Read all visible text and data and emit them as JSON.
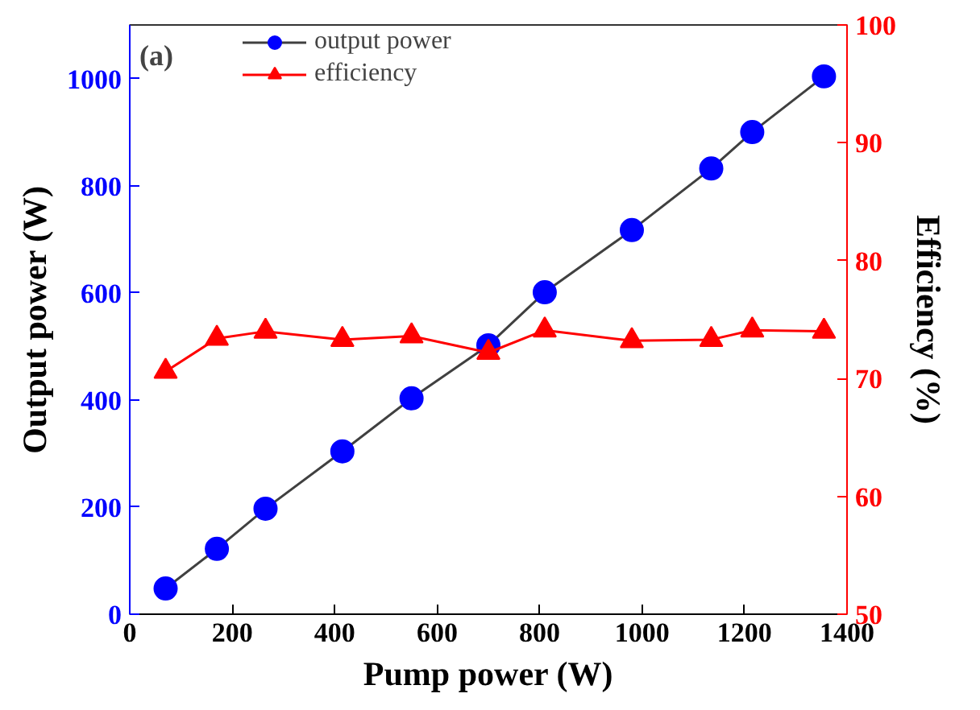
{
  "chart_data": {
    "type": "line",
    "xlabel": "Pump power (W)",
    "ylabel": "Output power (W)",
    "y2label": "Efficiency (%)",
    "annotations": [
      "(a)"
    ],
    "x": [
      70,
      170,
      265,
      415,
      550,
      700,
      810,
      980,
      1135,
      1215,
      1355
    ],
    "xlim": [
      0,
      1400
    ],
    "xticks": [
      0,
      200,
      400,
      600,
      800,
      1000,
      1200,
      1400
    ],
    "ylim": [
      0,
      1100
    ],
    "yticks": [
      0,
      200,
      400,
      600,
      800,
      1000
    ],
    "y2lim": [
      50,
      100
    ],
    "y2ticks": [
      50,
      60,
      70,
      80,
      90,
      100
    ],
    "series": [
      {
        "name": "output power",
        "color": "#0000ff",
        "marker": "circle",
        "values": [
          48,
          122,
          197,
          304,
          403,
          502,
          601,
          717,
          832,
          900,
          1004
        ]
      },
      {
        "name": "efficiency",
        "color": "#ff0000",
        "marker": "triangle",
        "axis": "y2",
        "values": [
          70.6,
          73.4,
          74.0,
          73.3,
          73.6,
          72.2,
          74.1,
          73.2,
          73.3,
          74.1,
          74.0
        ]
      }
    ],
    "legend": "top left",
    "grid": false
  }
}
